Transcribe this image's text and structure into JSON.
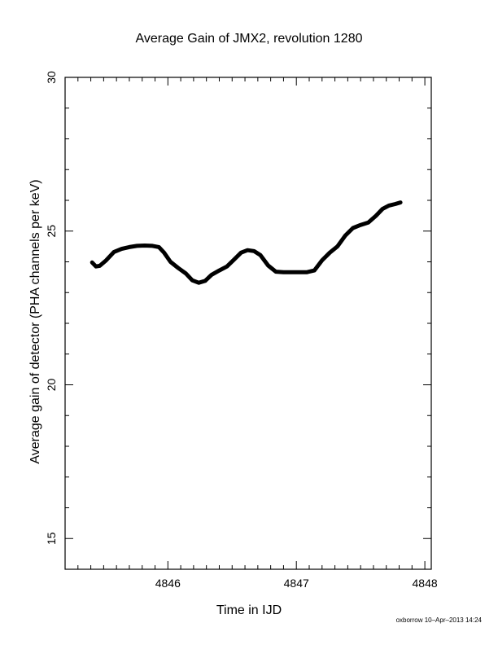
{
  "chart_data": {
    "type": "line",
    "title": "Average Gain of JMX2, revolution 1280",
    "xlabel": "Time in IJD",
    "ylabel": "Average gain of detector (PHA channels per keV)",
    "xlim": [
      4845.2,
      4848.05
    ],
    "ylim": [
      14,
      30
    ],
    "x_ticks": [
      4846,
      4847,
      4848
    ],
    "y_ticks": [
      15,
      20,
      25,
      30
    ],
    "x_minor_step": 0.1,
    "y_minor_step": 1,
    "grid": false,
    "series": [
      {
        "x": [
          4845.41,
          4845.44,
          4845.47,
          4845.52,
          4845.58,
          4845.64,
          4845.7,
          4845.76,
          4845.82,
          4845.88,
          4845.93,
          4845.97,
          4846.02,
          4846.08,
          4846.14,
          4846.19,
          4846.24,
          4846.29,
          4846.34,
          4846.4,
          4846.46,
          4846.51,
          4846.57,
          4846.62,
          4846.67,
          4846.72,
          4846.78,
          4846.84,
          4846.9,
          4846.96,
          4847.02,
          4847.08,
          4847.14,
          4847.2,
          4847.26,
          4847.32,
          4847.38,
          4847.44,
          4847.5,
          4847.56,
          4847.62,
          4847.67,
          4847.72,
          4847.77,
          4847.81
        ],
        "values": [
          23.98,
          23.85,
          23.87,
          24.05,
          24.32,
          24.42,
          24.48,
          24.52,
          24.53,
          24.52,
          24.48,
          24.3,
          24.0,
          23.8,
          23.62,
          23.4,
          23.32,
          23.38,
          23.58,
          23.72,
          23.85,
          24.05,
          24.3,
          24.38,
          24.35,
          24.22,
          23.88,
          23.68,
          23.66,
          23.66,
          23.66,
          23.66,
          23.72,
          24.05,
          24.3,
          24.5,
          24.85,
          25.1,
          25.2,
          25.28,
          25.5,
          25.72,
          25.83,
          25.88,
          25.93
        ]
      }
    ]
  },
  "footer": {
    "timestamp": "oxborrow 10–Apr–2013 14:24"
  }
}
